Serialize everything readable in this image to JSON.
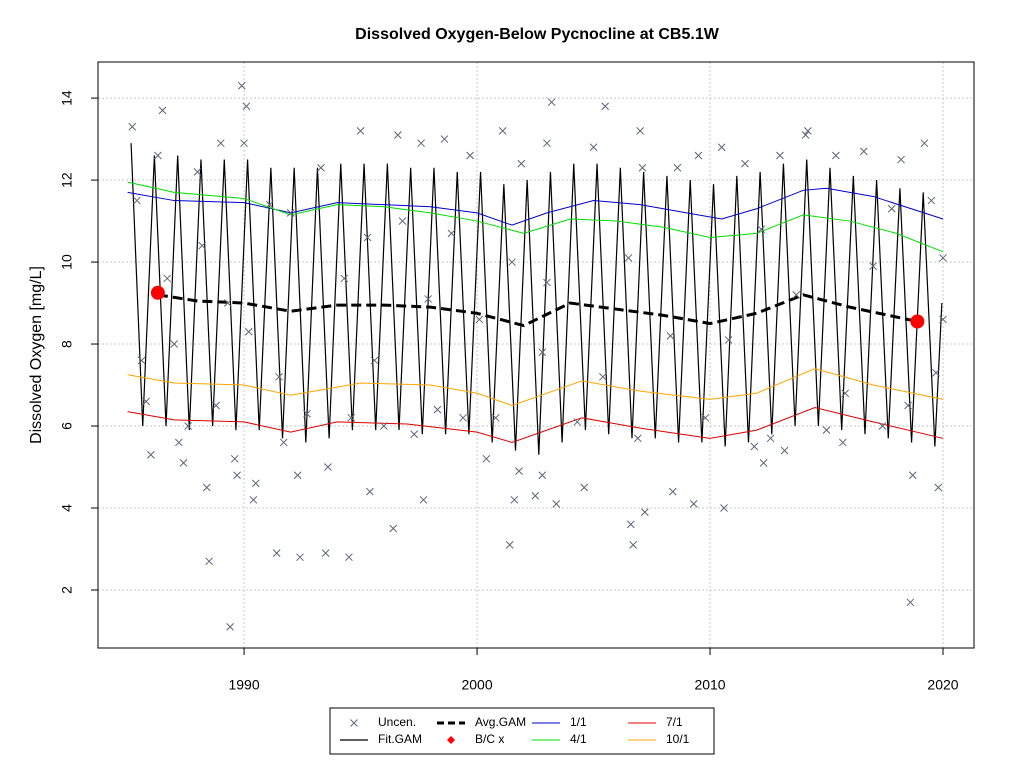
{
  "chart_data": {
    "type": "line",
    "title": "Dissolved Oxygen-Below Pycnocline at CB5.1W",
    "ylabel": "Dissolved Oxygen [mg/L]",
    "xlim": [
      1983.73,
      2021.33
    ],
    "ylim": [
      0.585,
      14.88
    ],
    "xticks": [
      1990,
      2000,
      2010,
      2020
    ],
    "yticks": [
      2,
      4,
      6,
      8,
      10,
      12,
      14
    ],
    "grid": true,
    "series": [
      {
        "name": "Uncen.",
        "type": "scatter",
        "color": "#5a6678",
        "x": [
          1985.2,
          1985.4,
          1985.6,
          1985.8,
          1986.0,
          1986.3,
          1986.5,
          1986.7,
          1987.0,
          1987.2,
          1987.4,
          1987.6,
          1988.0,
          1988.2,
          1988.4,
          1988.5,
          1988.8,
          1989.0,
          1989.3,
          1989.6,
          1989.7,
          1990.0,
          1990.2,
          1990.4,
          1990.5,
          1989.4,
          1989.9,
          1990.1,
          1991.1,
          1991.5,
          1991.7,
          1992.0,
          1992.3,
          1992.7,
          1991.4,
          1993.3,
          1993.6,
          1992.4,
          1994.3,
          1994.6,
          1995.0,
          1995.3,
          1995.6,
          1993.5,
          1996.0,
          1994.5,
          1996.6,
          1996.8,
          1995.4,
          1997.3,
          1997.6,
          1997.9,
          1996.4,
          1998.3,
          1998.6,
          1998.9,
          1997.7,
          1999.4,
          1999.7,
          2000.1,
          2000.4,
          2000.8,
          2001.1,
          2001.5,
          2001.9,
          2001.4,
          2001.6,
          2001.8,
          2002.8,
          2003.0,
          2002.5,
          2002.8,
          2003.2,
          2003.0,
          2004.3,
          2003.4,
          2005.0,
          2005.4,
          2004.6,
          2005.5,
          2006.5,
          2006.9,
          2007.1,
          2006.6,
          2006.7,
          2007.0,
          2007.2,
          2008.3,
          2008.6,
          2008.4,
          2009.5,
          2009.8,
          2009.3,
          2010.5,
          2010.8,
          2010.6,
          2011.5,
          2011.9,
          2012.2,
          2012.6,
          2013.0,
          2012.3,
          2013.7,
          2013.2,
          2014.1,
          2014.2,
          2015.0,
          2015.4,
          2015.8,
          2015.7,
          2016.6,
          2017.0,
          2017.4,
          2017.8,
          2018.2,
          2018.5,
          2018.6,
          2018.7,
          2019.2,
          2019.5,
          2019.7,
          2019.8,
          2020.0,
          2020.0
        ],
        "values": [
          13.3,
          11.5,
          7.6,
          6.6,
          5.3,
          12.6,
          13.7,
          9.6,
          8.0,
          5.6,
          5.1,
          6.0,
          12.2,
          10.4,
          4.5,
          2.7,
          6.5,
          12.9,
          9.0,
          5.2,
          4.8,
          12.9,
          8.3,
          4.2,
          4.6,
          1.1,
          14.3,
          13.8,
          11.4,
          7.2,
          5.6,
          11.2,
          4.8,
          6.3,
          2.9,
          12.3,
          5.0,
          2.8,
          9.6,
          6.2,
          13.2,
          10.6,
          7.6,
          2.9,
          6.0,
          2.8,
          13.1,
          11.0,
          4.4,
          5.8,
          12.9,
          9.1,
          3.5,
          6.4,
          13.0,
          10.7,
          4.2,
          6.2,
          12.6,
          8.6,
          5.2,
          6.2,
          13.2,
          10.0,
          12.4,
          3.1,
          4.2,
          4.9,
          7.8,
          9.5,
          4.3,
          4.8,
          13.9,
          12.9,
          6.1,
          4.1,
          12.8,
          7.2,
          4.5,
          13.8,
          10.1,
          5.7,
          12.3,
          3.6,
          3.1,
          13.2,
          3.9,
          8.2,
          12.3,
          4.4,
          12.6,
          6.2,
          4.1,
          12.8,
          8.1,
          4.0,
          12.4,
          5.5,
          10.8,
          5.7,
          12.6,
          5.1,
          9.2,
          5.4,
          13.1,
          13.2,
          5.9,
          12.6,
          6.8,
          5.6,
          12.7,
          9.9,
          6.0,
          11.3,
          12.5,
          6.5,
          1.7,
          4.8,
          12.9,
          11.5,
          7.3,
          4.5,
          10.1,
          8.6
        ]
      },
      {
        "name": "Fit.GAM",
        "type": "line",
        "color": "#000000",
        "width": 1.2,
        "x": [
          1985.15,
          1985.65,
          1986.15,
          1986.65,
          1987.15,
          1987.65,
          1988.15,
          1988.65,
          1989.15,
          1989.65,
          1990.15,
          1990.65,
          1991.15,
          1991.65,
          1992.15,
          1992.65,
          1993.15,
          1993.65,
          1994.15,
          1994.65,
          1995.15,
          1995.65,
          1996.15,
          1996.65,
          1997.15,
          1997.65,
          1998.15,
          1998.65,
          1999.15,
          1999.65,
          2000.15,
          2000.65,
          2001.15,
          2001.65,
          2002.15,
          2002.65,
          2003.15,
          2003.65,
          2004.15,
          2004.65,
          2005.15,
          2005.65,
          2006.15,
          2006.65,
          2007.15,
          2007.65,
          2008.15,
          2008.65,
          2009.15,
          2009.65,
          2010.15,
          2010.65,
          2011.15,
          2011.65,
          2012.15,
          2012.65,
          2013.15,
          2013.65,
          2014.15,
          2014.65,
          2015.15,
          2015.65,
          2016.15,
          2016.65,
          2017.15,
          2017.65,
          2018.15,
          2018.65,
          2019.15,
          2019.65,
          2019.95
        ],
        "values": [
          12.9,
          6.0,
          12.6,
          6.0,
          12.6,
          5.9,
          12.5,
          6.0,
          12.5,
          5.9,
          12.5,
          5.9,
          12.3,
          5.7,
          12.3,
          5.6,
          12.3,
          5.7,
          12.4,
          5.9,
          12.4,
          5.9,
          12.4,
          5.9,
          12.3,
          5.8,
          12.3,
          5.8,
          12.2,
          5.8,
          12.2,
          5.6,
          11.9,
          5.4,
          12.0,
          5.3,
          12.2,
          5.6,
          12.4,
          5.9,
          12.4,
          5.8,
          12.3,
          5.7,
          12.2,
          5.7,
          12.1,
          5.6,
          12.0,
          5.6,
          11.9,
          5.5,
          12.1,
          5.6,
          12.2,
          5.8,
          12.4,
          6.0,
          12.5,
          6.0,
          12.3,
          5.9,
          12.1,
          5.8,
          12.0,
          5.7,
          11.8,
          5.6,
          11.7,
          5.5,
          9.0
        ]
      },
      {
        "name": "Avg.GAM",
        "type": "line",
        "color": "#000000",
        "width": 3,
        "dash": true,
        "x": [
          1986.3,
          1988,
          1990,
          1992,
          1994,
          1996,
          1998,
          2000,
          2002,
          2004,
          2006,
          2008,
          2010,
          2012,
          2014,
          2016,
          2018.9
        ],
        "values": [
          9.2,
          9.05,
          9.0,
          8.8,
          8.95,
          8.95,
          8.9,
          8.75,
          8.45,
          9.0,
          8.85,
          8.7,
          8.5,
          8.75,
          9.2,
          8.9,
          8.55
        ]
      },
      {
        "name": "B/C x",
        "type": "point",
        "color": "#ff0000",
        "x": [
          1986.3,
          2018.9
        ],
        "values": [
          9.25,
          8.55
        ]
      },
      {
        "name": "1/1",
        "type": "line",
        "color": "#0000cd",
        "width": 1,
        "x": [
          1985,
          1987,
          1990,
          1992,
          1994,
          1996,
          1998,
          2000,
          2001.5,
          2003,
          2005,
          2007,
          2009,
          2010.5,
          2012,
          2014,
          2015,
          2017,
          2020
        ],
        "values": [
          11.7,
          11.5,
          11.45,
          11.2,
          11.45,
          11.4,
          11.35,
          11.2,
          10.9,
          11.2,
          11.5,
          11.4,
          11.2,
          11.05,
          11.3,
          11.75,
          11.8,
          11.6,
          11.05
        ]
      },
      {
        "name": "4/1",
        "type": "line",
        "color": "#00dd00",
        "width": 1,
        "x": [
          1985,
          1987,
          1990,
          1992,
          1994,
          1996,
          1998,
          2000,
          2002,
          2004,
          2006,
          2008,
          2010,
          2012,
          2014,
          2016,
          2018,
          2020
        ],
        "values": [
          11.95,
          11.7,
          11.55,
          11.15,
          11.4,
          11.35,
          11.2,
          11.0,
          10.7,
          11.05,
          11.0,
          10.85,
          10.6,
          10.7,
          11.15,
          11.0,
          10.7,
          10.25
        ]
      },
      {
        "name": "7/1",
        "type": "line",
        "color": "#dd0000",
        "width": 1,
        "x": [
          1985,
          1987,
          1990,
          1992,
          1994,
          1997,
          2000,
          2001.5,
          2004.5,
          2007,
          2010,
          2012,
          2014.5,
          2017,
          2020
        ],
        "values": [
          6.35,
          6.15,
          6.1,
          5.85,
          6.1,
          6.05,
          5.85,
          5.6,
          6.2,
          5.95,
          5.7,
          5.9,
          6.45,
          6.1,
          5.7
        ]
      },
      {
        "name": "10/1",
        "type": "line",
        "color": "#ffa500",
        "width": 1,
        "x": [
          1985,
          1987,
          1990,
          1992,
          1995,
          1998,
          2000,
          2001.5,
          2004.5,
          2007,
          2010,
          2012,
          2014.5,
          2017,
          2020
        ],
        "values": [
          7.25,
          7.05,
          7.0,
          6.75,
          7.05,
          7.0,
          6.8,
          6.5,
          7.1,
          6.85,
          6.65,
          6.8,
          7.4,
          7.0,
          6.65
        ]
      }
    ]
  }
}
